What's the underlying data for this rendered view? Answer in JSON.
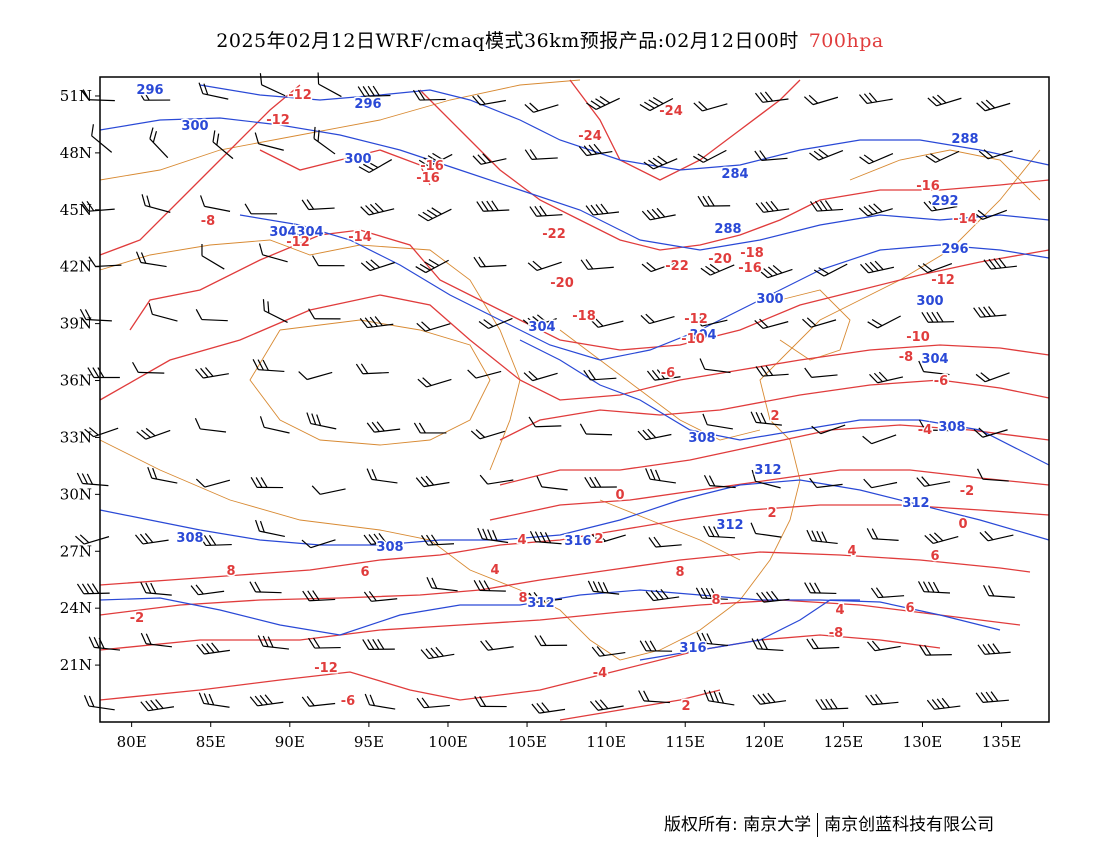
{
  "header": {
    "title": "2025年02月12日WRF/cmaq模式36km预报产品:02月12日00时",
    "level": "700hpa",
    "level_color": "#e03c3c"
  },
  "axes": {
    "lat_labels": [
      "51N",
      "48N",
      "45N",
      "42N",
      "39N",
      "36N",
      "33N",
      "30N",
      "27N",
      "24N",
      "21N"
    ],
    "lon_labels": [
      "80E",
      "85E",
      "90E",
      "95E",
      "100E",
      "105E",
      "110E",
      "115E",
      "120E",
      "125E",
      "130E",
      "135E"
    ]
  },
  "colors": {
    "height_contours": "#2a49d6",
    "temperature_contours": "#e03c3c",
    "borders": "#d88a33",
    "wind_barbs": "#000000"
  },
  "icons": [
    "wind-barb-icon"
  ],
  "height_labels": [
    "296",
    "296",
    "300",
    "300",
    "304",
    "304",
    "288",
    "284",
    "288",
    "292",
    "296",
    "300",
    "300",
    "304",
    "304",
    "304",
    "308",
    "308",
    "312",
    "312",
    "308",
    "308",
    "312",
    "312",
    "316",
    "316"
  ],
  "temperature_labels": [
    "-12",
    "-12",
    "-8",
    "-12",
    "-14",
    "-16",
    "-16",
    "-22",
    "-20",
    "-22",
    "-20",
    "-18",
    "-16",
    "-18",
    "-24",
    "-24",
    "-16",
    "-14",
    "-12",
    "-12",
    "-10",
    "-10",
    "-8",
    "-6",
    "-6",
    "-4",
    "-2",
    "0",
    "0",
    "2",
    "2",
    "2",
    "4",
    "4",
    "4",
    "6",
    "6",
    "8",
    "8",
    "8",
    "8",
    "-2",
    "-12",
    "-8",
    "-6",
    "-4",
    "2",
    "4",
    "6"
  ],
  "footer": {
    "copyright": "版权所有: 南京大学",
    "company": "南京创蓝科技有限公司"
  }
}
